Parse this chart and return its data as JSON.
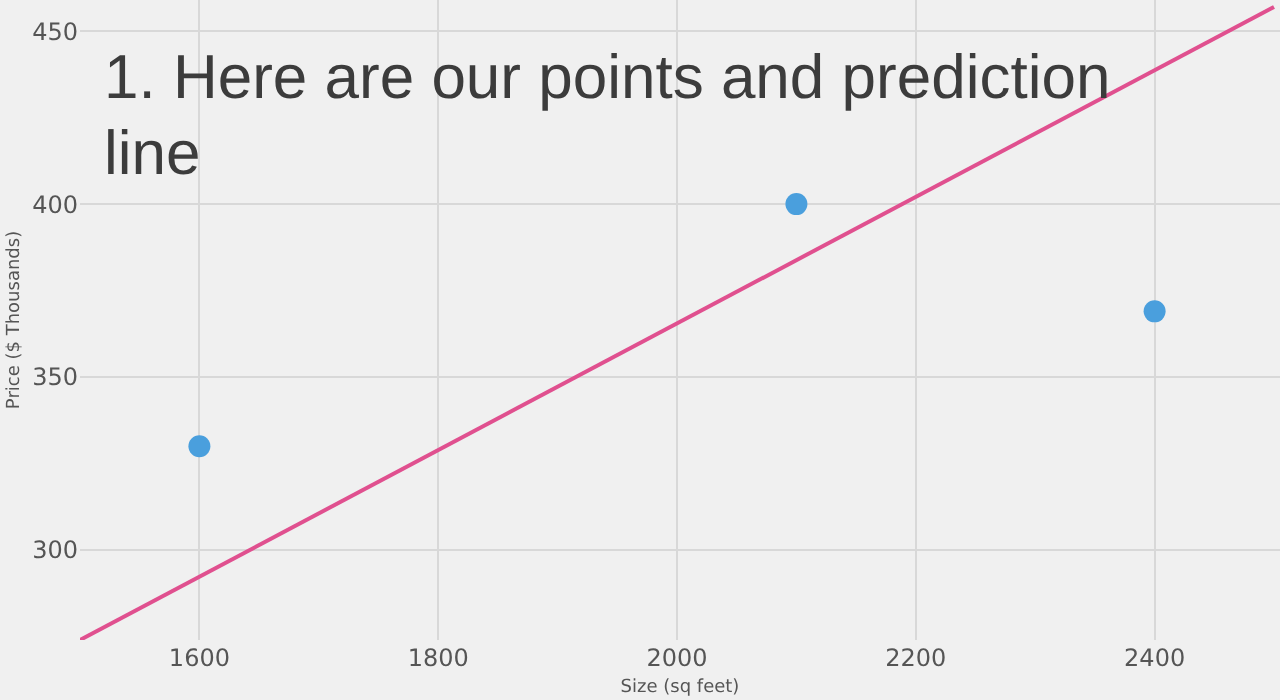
{
  "chart_data": {
    "type": "scatter",
    "title": "1. Here are our points and prediction line",
    "xlabel": "Size (sq feet)",
    "ylabel": "Price ($ Thousands)",
    "xlim": [
      1500,
      2505
    ],
    "ylim": [
      274,
      459
    ],
    "xticks": [
      1600,
      1800,
      2000,
      2200,
      2400
    ],
    "yticks": [
      300,
      350,
      400,
      450
    ],
    "grid": true,
    "series": [
      {
        "color": "#4a9fdd",
        "x": [
          1600,
          2100,
          2400
        ],
        "values": [
          330,
          400,
          369
        ],
        "marker": "circle"
      },
      {
        "type": "line",
        "color": "#e0508f",
        "x": [
          1500,
          2500
        ],
        "values": [
          274,
          457
        ]
      }
    ]
  }
}
